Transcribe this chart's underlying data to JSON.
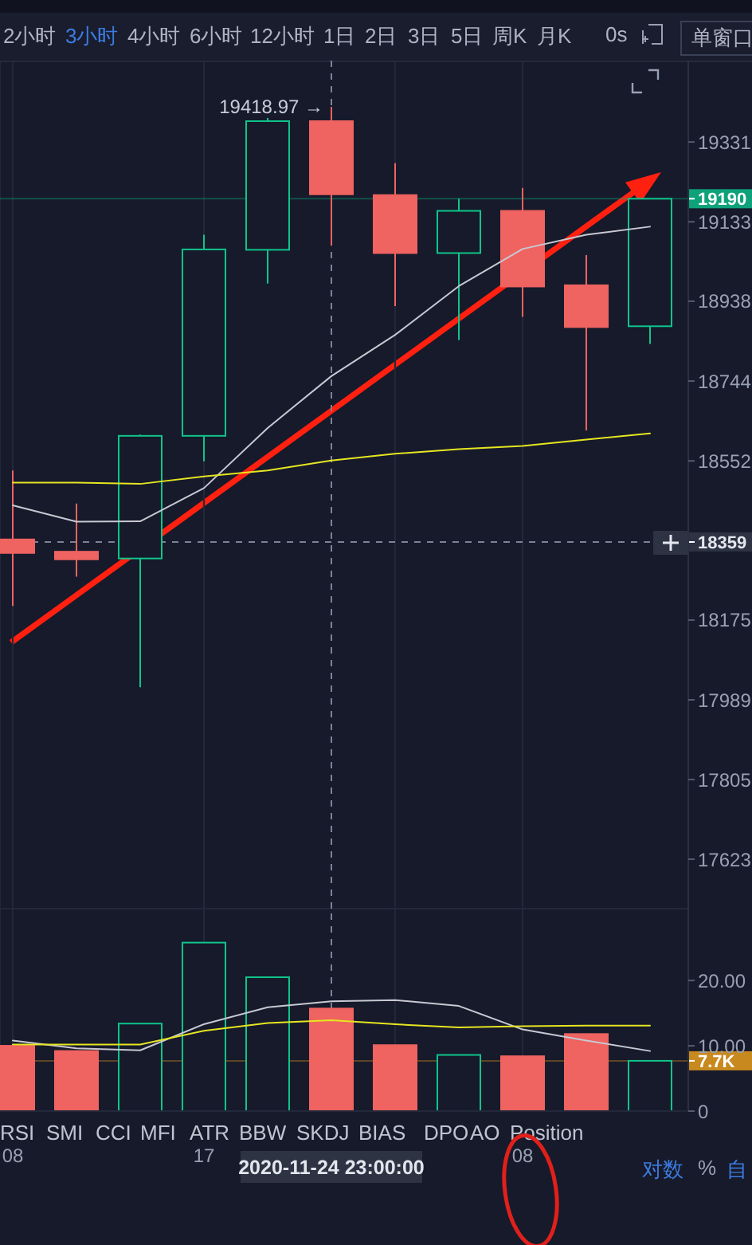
{
  "chart_data": [
    {
      "type": "candlestick",
      "x": [
        "2020-11-24T08:00",
        "2020-11-24T11:00",
        "2020-11-24T14:00",
        "2020-11-24T17:00",
        "2020-11-24T20:00",
        "2020-11-24T23:00",
        "2020-11-25T02:00",
        "2020-11-25T05:00",
        "2020-11-25T08:00",
        "2020-11-25T11:00",
        "2020-11-25T14:00"
      ],
      "xlim": [
        "2020-11-24T07:24",
        "2020-11-25T15:48"
      ],
      "xticks": [
        {
          "value": "2020-11-24T08:00",
          "label": null
        },
        {
          "value": "2020-11-24T17:00",
          "label": null
        },
        {
          "value": "2020-11-25T02:00",
          "label": null
        },
        {
          "value": "2020-11-25T08:00",
          "label": null
        }
      ],
      "ohlc": [
        [
          18365,
          18529,
          18208,
          18333
        ],
        [
          18336,
          18450,
          18277,
          18318
        ],
        [
          18320,
          18615,
          18018,
          18612
        ],
        [
          18612,
          19101,
          18551,
          19065
        ],
        [
          19064,
          19391,
          18981,
          19383
        ],
        [
          19383,
          19418.97,
          19074,
          19201
        ],
        [
          19199,
          19278,
          18926,
          19056
        ],
        [
          19056,
          19190,
          18843,
          19160
        ],
        [
          19160,
          19217,
          18900,
          18974
        ],
        [
          18977,
          19051,
          18625,
          18875
        ],
        [
          18877,
          19190,
          18834,
          19190
        ]
      ],
      "colors": [
        "#ef6360",
        "#ef6360",
        "#10c48a",
        "#10c48a",
        "#10c48a",
        "#ef6360",
        "#ef6360",
        "#10c48a",
        "#ef6360",
        "#ef6360",
        "#10c48a"
      ],
      "series": [
        {
          "type": "line",
          "color": "#c8c8d2",
          "values": [
            18446,
            18407,
            18408,
            18487,
            18631,
            18756,
            18856,
            18975,
            19066,
            19101,
            19121
          ]
        },
        {
          "type": "line",
          "color": "#e6e620",
          "values": [
            18500,
            18500,
            18497,
            18515,
            18529,
            18553,
            18569,
            18580,
            18588,
            18603,
            18618
          ]
        }
      ],
      "log": "y",
      "ylim": [
        17511,
        19535
      ],
      "yticks": [
        19331,
        19133,
        18938,
        18744,
        18552,
        18175,
        17989,
        17805,
        17623
      ],
      "tick_labels": "y",
      "grid": true,
      "ref_lines": [
        {
          "axis": "x",
          "value": "2020-11-24T23:00",
          "line_style": "dashed"
        },
        {
          "axis": "y",
          "value": 18359,
          "label": "18359",
          "line_style": "dashed"
        },
        {
          "axis": "y",
          "value": 19190,
          "label": "19190",
          "color": "#0ea27a"
        }
      ],
      "annotations": [
        "2小时",
        "3小时",
        "4小时",
        "6小时",
        "12小时",
        "1日",
        "2日",
        "3日",
        "5日",
        "周K",
        "月K",
        "0s",
        "单窗口",
        {
          "text": "19418.97 →",
          "x": "2020-11-24T23:00",
          "y": 19418.97
        }
      ]
    },
    {
      "type": "bar",
      "x": [
        "2020-11-24T08:00",
        "2020-11-24T11:00",
        "2020-11-24T14:00",
        "2020-11-24T17:00",
        "2020-11-24T20:00",
        "2020-11-24T23:00",
        "2020-11-25T02:00",
        "2020-11-25T05:00",
        "2020-11-25T08:00",
        "2020-11-25T11:00",
        "2020-11-25T14:00"
      ],
      "xlim": [
        "2020-11-24T07:24",
        "2020-11-25T15:48"
      ],
      "xticks": [
        {
          "value": "2020-11-24T08:00",
          "label": "08"
        },
        {
          "value": "2020-11-24T17:00",
          "label": "17"
        },
        {
          "value": "2020-11-25T02:00",
          "label": null
        },
        {
          "value": "2020-11-25T08:00",
          "label": "08"
        }
      ],
      "values": [
        10.0,
        9.2,
        13.4,
        25.8,
        20.5,
        15.7,
        10.1,
        8.6,
        8.4,
        11.8,
        7.7
      ],
      "colors": [
        "#ef6360",
        "#ef6360",
        "#10c48a",
        "#10c48a",
        "#10c48a",
        "#ef6360",
        "#ef6360",
        "#10c48a",
        "#ef6360",
        "#ef6360",
        "#10c48a"
      ],
      "series": [
        {
          "type": "line",
          "color": "#c8c8d2",
          "values": [
            10.8,
            9.6,
            9.3,
            13.3,
            15.9,
            16.8,
            17.0,
            16.1,
            12.5,
            10.8,
            9.2
          ]
        },
        {
          "type": "line",
          "color": "#e6e620",
          "values": [
            10.2,
            10.2,
            10.2,
            12.3,
            13.5,
            13.9,
            13.3,
            12.8,
            13.0,
            13.1,
            13.1
          ]
        }
      ],
      "ylim": [
        0,
        31
      ],
      "yticks": [
        {
          "value": 20,
          "label": "20.00"
        },
        {
          "value": 10,
          "label": "10.00"
        },
        0
      ],
      "grid": true,
      "ref_lines": [
        {
          "axis": "x",
          "value": "2020-11-24T23:00",
          "label": "2020-11-24 23:00:00",
          "line_style": "dashed"
        },
        {
          "axis": "y",
          "value": 7.7,
          "label": "7.7K",
          "color": "#c8891e"
        }
      ],
      "annotations": [
        "RSI",
        "SMI",
        "CCI",
        "MFI",
        "ATR",
        "BBW",
        "SKDJ",
        "BIAS",
        "DPO",
        "AO",
        "Position",
        "对数",
        "%",
        "自"
      ]
    }
  ]
}
